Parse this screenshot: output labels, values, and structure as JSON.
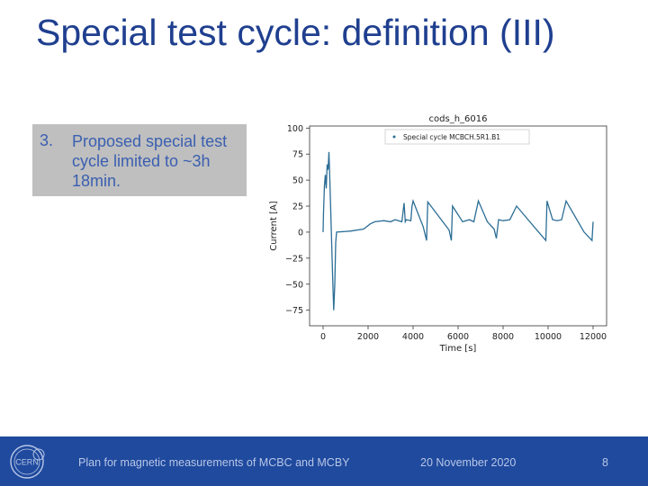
{
  "slide": {
    "title": "Special test cycle: definition (III)",
    "callout": {
      "number": "3.",
      "text": "Proposed special test cycle limited to ~3h 18min."
    }
  },
  "footer": {
    "presentation_title": "Plan for magnetic measurements of MCBC and MCBY",
    "date": "20 November 2020",
    "page": "8",
    "logo_text": "CERN"
  },
  "colors": {
    "title": "#1f3f8f",
    "footer_bg": "#1f4a9e",
    "callout_bg": "#bfbfbf",
    "series": "#2c6e96"
  },
  "chart_data": {
    "type": "line",
    "title": "cods_h_6016",
    "xlabel": "Time [s]",
    "ylabel": "Current [A]",
    "xlim": [
      -600,
      12600
    ],
    "ylim": [
      -90,
      102
    ],
    "xticks": [
      0,
      2000,
      4000,
      6000,
      8000,
      10000,
      12000
    ],
    "xtick_labels": [
      "0",
      "2000",
      "4000",
      "6000",
      "8000",
      "10000",
      "12000"
    ],
    "yticks": [
      100,
      75,
      50,
      25,
      0,
      -25,
      -50,
      -75
    ],
    "ytick_labels": [
      "100",
      "75",
      "50",
      "25",
      "0",
      "−25",
      "−50",
      "−75"
    ],
    "legend": "top-right",
    "series": [
      {
        "name": "Special cycle MCBCH.5R1.B1",
        "points": [
          [
            0,
            0
          ],
          [
            20,
            20
          ],
          [
            60,
            45
          ],
          [
            100,
            55
          ],
          [
            140,
            42
          ],
          [
            180,
            65
          ],
          [
            220,
            60
          ],
          [
            260,
            77
          ],
          [
            300,
            50
          ],
          [
            340,
            20
          ],
          [
            380,
            -10
          ],
          [
            420,
            -40
          ],
          [
            470,
            -75
          ],
          [
            520,
            -50
          ],
          [
            560,
            -10
          ],
          [
            600,
            0
          ],
          [
            1200,
            1
          ],
          [
            1800,
            3
          ],
          [
            2100,
            8
          ],
          [
            2300,
            10
          ],
          [
            2700,
            11
          ],
          [
            3000,
            10
          ],
          [
            3200,
            12
          ],
          [
            3500,
            10
          ],
          [
            3600,
            28
          ],
          [
            3650,
            10
          ],
          [
            3700,
            12
          ],
          [
            3900,
            11
          ],
          [
            3950,
            25
          ],
          [
            4000,
            30
          ],
          [
            4450,
            5
          ],
          [
            4600,
            -8
          ],
          [
            4650,
            29
          ],
          [
            5600,
            2
          ],
          [
            5700,
            -8
          ],
          [
            5750,
            25
          ],
          [
            6200,
            10
          ],
          [
            6500,
            12
          ],
          [
            6700,
            10
          ],
          [
            6900,
            30
          ],
          [
            7300,
            10
          ],
          [
            7600,
            3
          ],
          [
            7700,
            -6
          ],
          [
            7800,
            12
          ],
          [
            8000,
            11
          ],
          [
            8300,
            12
          ],
          [
            8600,
            25
          ],
          [
            9500,
            2
          ],
          [
            9900,
            -8
          ],
          [
            9950,
            30
          ],
          [
            10200,
            12
          ],
          [
            10400,
            11
          ],
          [
            10600,
            12
          ],
          [
            10800,
            30
          ],
          [
            11600,
            0
          ],
          [
            11950,
            -8
          ],
          [
            12000,
            10
          ]
        ]
      }
    ]
  }
}
